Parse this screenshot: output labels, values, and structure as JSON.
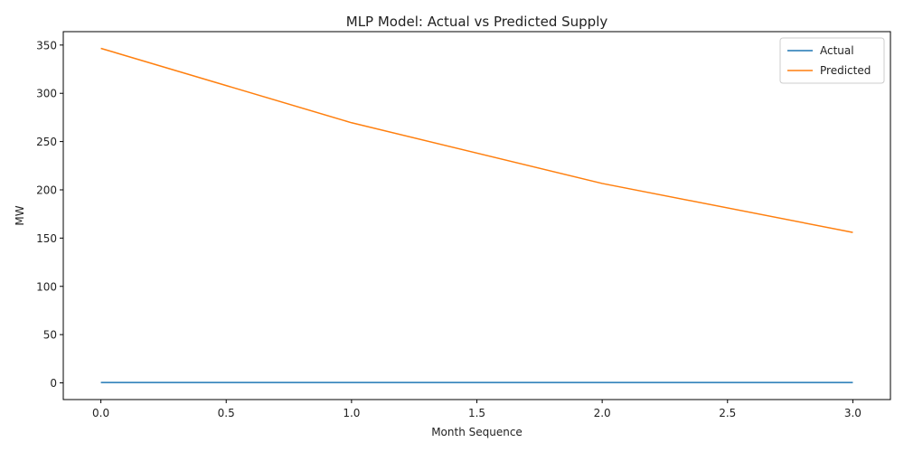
{
  "chart_data": {
    "type": "line",
    "title": "MLP Model: Actual vs Predicted Supply",
    "xlabel": "Month Sequence",
    "ylabel": "MW",
    "x": [
      0,
      1,
      2,
      3
    ],
    "xlim": [
      -0.15,
      3.15
    ],
    "ylim": [
      -17.3,
      363.9
    ],
    "xticks": [
      0.0,
      0.5,
      1.0,
      1.5,
      2.0,
      2.5,
      3.0
    ],
    "xtick_labels": [
      "0.0",
      "0.5",
      "1.0",
      "1.5",
      "2.0",
      "2.5",
      "3.0"
    ],
    "yticks": [
      0,
      50,
      100,
      150,
      200,
      250,
      300,
      350
    ],
    "ytick_labels": [
      "0",
      "50",
      "100",
      "150",
      "200",
      "250",
      "300",
      "350"
    ],
    "grid": false,
    "legend_position": "top-right",
    "series": [
      {
        "name": "Actual",
        "color": "#1f77b4",
        "values": [
          0.4,
          0.4,
          0.4,
          0.4
        ]
      },
      {
        "name": "Predicted",
        "color": "#ff7f0e",
        "values": [
          346.6,
          269.5,
          206.6,
          155.9
        ]
      }
    ]
  }
}
